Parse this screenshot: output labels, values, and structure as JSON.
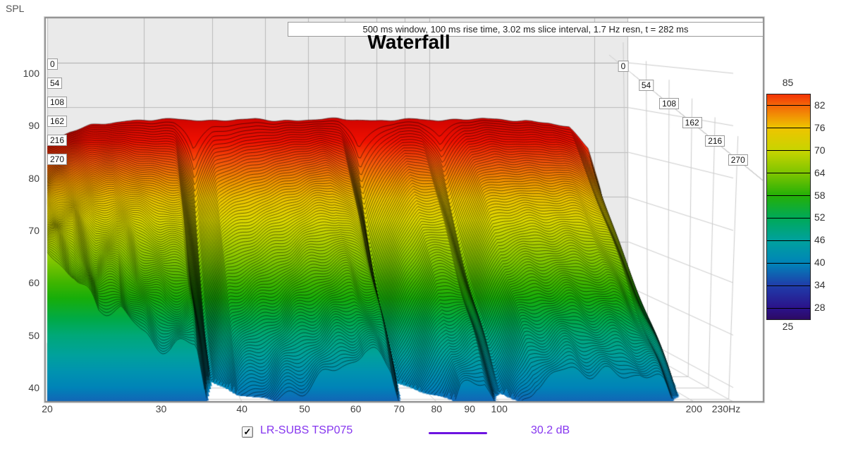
{
  "ui": {
    "spl_axis_label": "SPL",
    "legend": {
      "checkbox_checked": true,
      "checkmark": "✓",
      "label": "LR-SUBS TSP075",
      "value": "30.2 dB",
      "text_color": "#8636ef",
      "line_color": "#6d14e0"
    }
  },
  "chart_data": {
    "type": "waterfall",
    "title": "Waterfall",
    "annotation": "500 ms window, 100 ms rise time, 3.02 ms slice interval, 1.7 Hz resn, t = 282 ms",
    "ylabel": "SPL",
    "series": [
      {
        "name": "LR-SUBS TSP075",
        "level": "30.2 dB"
      }
    ],
    "freq_axis": {
      "scale": "log",
      "min_hz": 20,
      "max_hz": 230,
      "ticks_hz": [
        20,
        30,
        40,
        50,
        60,
        70,
        80,
        90,
        100,
        200,
        230
      ],
      "tick_labels": [
        "20",
        "30",
        "40",
        "50",
        "60",
        "70",
        "80",
        "90",
        "100",
        "200",
        "230Hz"
      ]
    },
    "spl_axis": {
      "ticks_db": [
        100,
        90,
        80,
        70,
        60,
        50,
        40
      ],
      "grid": true
    },
    "time_axis": {
      "unit": "ms",
      "ticks_ms": [
        0,
        54,
        108,
        162,
        216,
        270
      ],
      "total_ms": 282,
      "slice_interval_ms": 3.02,
      "rise_time_ms": 100,
      "window_ms": 500,
      "resolution_hz": 1.7
    },
    "colorbar": {
      "top_label": "85",
      "bottom_label": "25",
      "boundary_values": [
        85,
        82,
        76,
        70,
        64,
        58,
        52,
        46,
        40,
        34,
        28,
        25
      ]
    },
    "colormap_stops": [
      [
        110,
        "#9e0000"
      ],
      [
        92,
        "#cc0300"
      ],
      [
        87,
        "#f01000"
      ],
      [
        83,
        "#f5560a"
      ],
      [
        79,
        "#f29a00"
      ],
      [
        76,
        "#eec400"
      ],
      [
        72,
        "#ded800"
      ],
      [
        68,
        "#b2d000"
      ],
      [
        64,
        "#7ec500"
      ],
      [
        60,
        "#3fb500"
      ],
      [
        57,
        "#17ae0a"
      ],
      [
        53,
        "#00aa48"
      ],
      [
        50,
        "#00a878"
      ],
      [
        46,
        "#00a19e"
      ],
      [
        43,
        "#0093b0"
      ],
      [
        40,
        "#0084b8"
      ],
      [
        36,
        "#1c55b5"
      ],
      [
        33,
        "#2130a4"
      ],
      [
        29,
        "#2a1595"
      ],
      [
        25,
        "#2c0a63"
      ],
      [
        20,
        "#1a0540"
      ]
    ],
    "surface": {
      "freqs_hz": [
        20,
        22,
        24,
        26,
        28,
        31,
        34,
        37,
        40,
        44,
        48,
        52,
        57,
        62,
        68,
        74,
        80,
        87,
        95,
        104,
        114,
        125,
        137,
        150,
        165,
        180,
        195,
        205,
        215,
        222,
        230
      ],
      "spl_t0_db": [
        82,
        84.5,
        86,
        86.5,
        87,
        87.2,
        87.4,
        87.2,
        87,
        87.2,
        87.4,
        87.1,
        87,
        87.3,
        87.5,
        87.2,
        87,
        87.2,
        87.4,
        87.1,
        87.3,
        87.5,
        87.2,
        87,
        86.5,
        85.5,
        81,
        72,
        58,
        47,
        36
      ],
      "spl_t282_db": [
        66,
        62,
        54,
        55.5,
        50.5,
        47.6,
        48,
        24,
        33,
        36,
        38.5,
        41.3,
        44.7,
        46.7,
        44,
        26,
        32,
        39.3,
        40.7,
        33,
        41.3,
        42.6,
        43.1,
        42.8,
        43,
        40,
        34,
        28,
        24,
        21,
        18
      ],
      "decay_exponent": [
        1.1,
        1.1,
        1.0,
        1.0,
        0.95,
        0.9,
        0.85,
        0.5,
        0.8,
        0.85,
        0.9,
        0.95,
        1.0,
        1.0,
        0.9,
        0.5,
        0.75,
        0.95,
        0.9,
        0.6,
        0.95,
        1.0,
        1.0,
        1.0,
        1.0,
        0.95,
        0.8,
        0.8,
        0.6,
        0.55,
        0.5
      ],
      "ripple": {
        "base_db": 0.2,
        "growth_db": 1.6,
        "growth_pow": 1.4,
        "components": [
          [
            14.5,
            2.2,
            0.15,
            0.6
          ],
          [
            24.0,
            -1.7,
            0.42,
            0.35
          ],
          [
            7.3,
            0.9,
            0.77,
            0.25
          ]
        ]
      },
      "num_slices": 94
    }
  }
}
